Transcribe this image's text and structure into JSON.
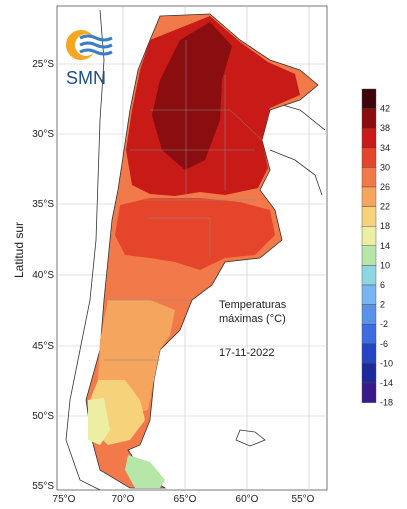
{
  "logo": {
    "text": "SMN"
  },
  "axis": {
    "y_label": "Latitud sur",
    "lat_ticks": [
      {
        "label": "25°S",
        "lat": 25
      },
      {
        "label": "30°S",
        "lat": 30
      },
      {
        "label": "35°S",
        "lat": 35
      },
      {
        "label": "40°S",
        "lat": 40
      },
      {
        "label": "45°S",
        "lat": 45
      },
      {
        "label": "50°S",
        "lat": 50
      },
      {
        "label": "55°S",
        "lat": 55
      }
    ],
    "lon_ticks": [
      {
        "label": "75°O",
        "lon": 75
      },
      {
        "label": "70°O",
        "lon": 70
      },
      {
        "label": "65°O",
        "lon": 65
      },
      {
        "label": "60°O",
        "lon": 60
      },
      {
        "label": "55°O",
        "lon": 55
      }
    ]
  },
  "annotation": {
    "line1": "Temperaturas",
    "line2": "máximas (°C)",
    "date": "17-11-2022"
  },
  "legend": [
    {
      "label": "42",
      "color": "#3d0608"
    },
    {
      "label": "38",
      "color": "#8a0d10"
    },
    {
      "label": "34",
      "color": "#c81a16"
    },
    {
      "label": "30",
      "color": "#e5452b"
    },
    {
      "label": "26",
      "color": "#f27a4a"
    },
    {
      "label": "22",
      "color": "#f6a55e"
    },
    {
      "label": "18",
      "color": "#f6d27a"
    },
    {
      "label": "14",
      "color": "#eceea4"
    },
    {
      "label": "10",
      "color": "#b6e6a8"
    },
    {
      "label": "6",
      "color": "#8fd6e3"
    },
    {
      "label": "2",
      "color": "#77b6f0"
    },
    {
      "label": "-2",
      "color": "#5a92ea"
    },
    {
      "label": "-6",
      "color": "#3d6ce0"
    },
    {
      "label": "-10",
      "color": "#2546c4"
    },
    {
      "label": "-14",
      "color": "#1c2a9c"
    },
    {
      "label": "-18",
      "color": "#3a1a8a"
    }
  ]
}
